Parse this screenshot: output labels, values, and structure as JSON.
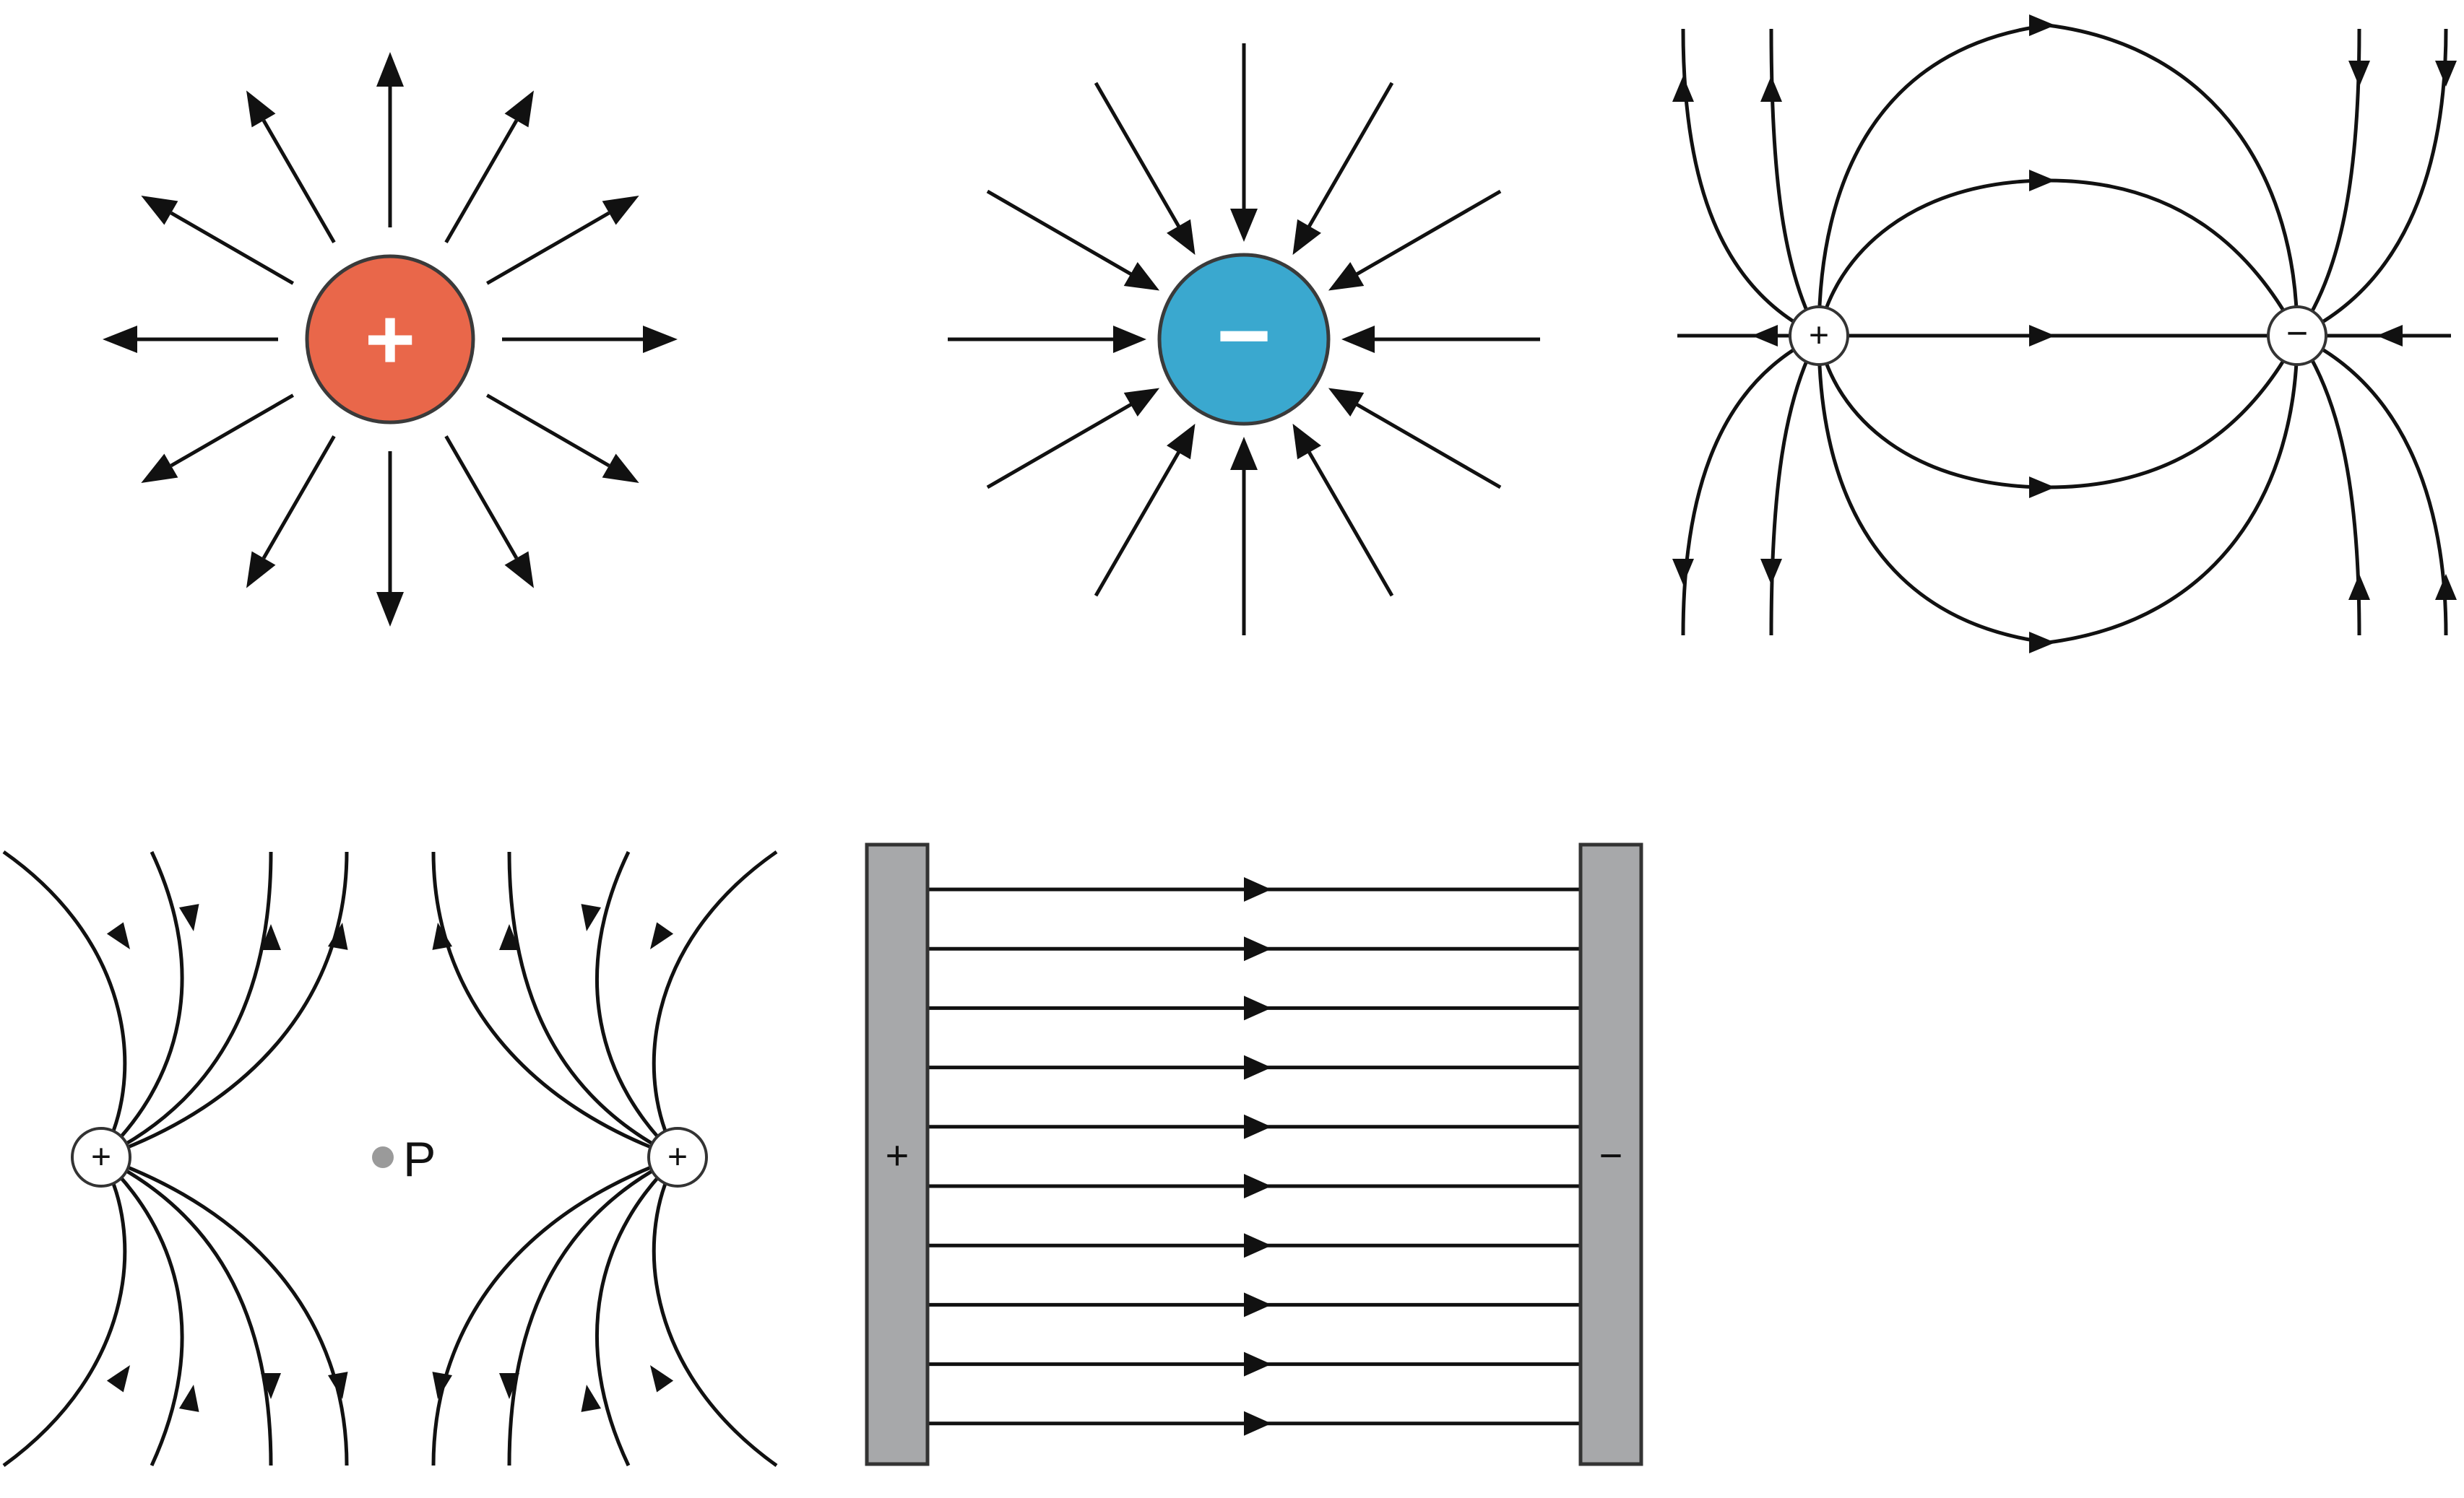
{
  "colors": {
    "positive": "#E9674A",
    "negative": "#3AA8CF",
    "stroke": "#111111",
    "plate": "#A7A8AA",
    "point": "#9A9A9A"
  },
  "panels": {
    "positive_charge": {
      "sign": "+"
    },
    "negative_charge": {
      "sign": "−"
    },
    "dipole": {
      "positive_sign": "+",
      "negative_sign": "−"
    },
    "like_charges": {
      "left_sign": "+",
      "right_sign": "+",
      "point_label": "P"
    },
    "parallel_plates": {
      "positive_sign": "+",
      "negative_sign": "−"
    }
  }
}
